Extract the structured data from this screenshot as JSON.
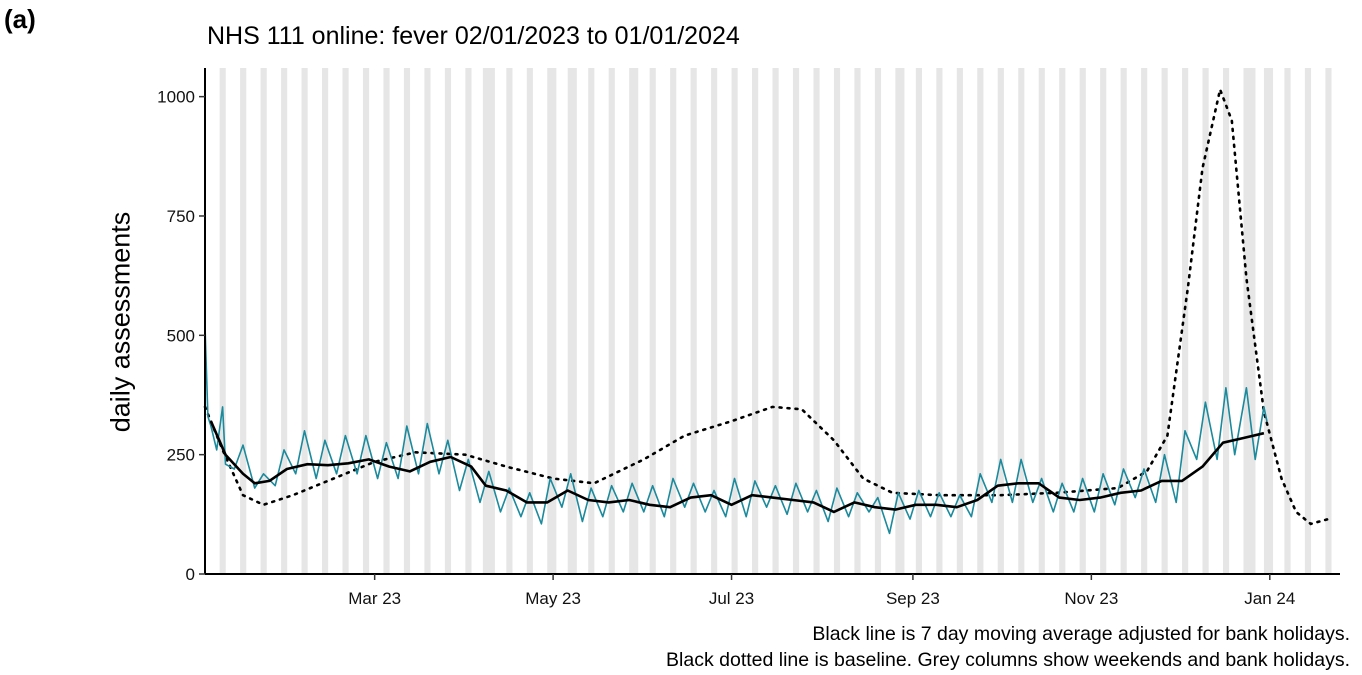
{
  "panel_label": "(a)",
  "caption": {
    "line1": "Black line is 7 day moving average adjusted for bank holidays.",
    "line2": "Black dotted line is baseline. Grey columns show weekends and bank holidays."
  },
  "colors": {
    "daily_series": "#1b8a9c",
    "moving_average": "#000000",
    "baseline": "#000000",
    "weekend_columns": "#e6e6e6"
  },
  "chart_data": {
    "type": "line",
    "title": "NHS 111 online: fever 02/01/2023 to 01/01/2024",
    "xlabel": "",
    "ylabel": "daily assessments",
    "x_range": [
      "2023-01-02",
      "2024-01-25"
    ],
    "ylim": [
      0,
      1060
    ],
    "y_ticks": [
      0,
      250,
      500,
      750,
      1000
    ],
    "x_ticks": [
      {
        "date": "2023-03-01",
        "label": "Mar 23"
      },
      {
        "date": "2023-05-01",
        "label": "May 23"
      },
      {
        "date": "2023-07-01",
        "label": "Jul 23"
      },
      {
        "date": "2023-09-01",
        "label": "Sep 23"
      },
      {
        "date": "2023-11-01",
        "label": "Nov 23"
      },
      {
        "date": "2024-01-01",
        "label": "Jan 24"
      }
    ],
    "grid": false,
    "weekend_columns": {
      "weekend_days": [
        "Sat",
        "Sun"
      ],
      "bank_holidays": [
        "2023-04-07",
        "2023-04-10",
        "2023-05-01",
        "2023-05-08",
        "2023-05-29",
        "2023-08-28",
        "2023-12-25",
        "2023-12-26",
        "2024-01-01"
      ]
    },
    "series": [
      {
        "role": "daily",
        "points": [
          [
            "2023-01-02",
            520
          ],
          [
            "2023-01-03",
            330
          ],
          [
            "2023-01-04",
            310
          ],
          [
            "2023-01-06",
            260
          ],
          [
            "2023-01-08",
            350
          ],
          [
            "2023-01-09",
            230
          ],
          [
            "2023-01-12",
            220
          ],
          [
            "2023-01-15",
            270
          ],
          [
            "2023-01-19",
            180
          ],
          [
            "2023-01-22",
            210
          ],
          [
            "2023-01-26",
            185
          ],
          [
            "2023-01-29",
            260
          ],
          [
            "2023-02-02",
            210
          ],
          [
            "2023-02-05",
            300
          ],
          [
            "2023-02-09",
            200
          ],
          [
            "2023-02-12",
            280
          ],
          [
            "2023-02-16",
            210
          ],
          [
            "2023-02-19",
            290
          ],
          [
            "2023-02-23",
            210
          ],
          [
            "2023-02-26",
            290
          ],
          [
            "2023-03-02",
            200
          ],
          [
            "2023-03-05",
            275
          ],
          [
            "2023-03-09",
            200
          ],
          [
            "2023-03-12",
            310
          ],
          [
            "2023-03-16",
            210
          ],
          [
            "2023-03-19",
            315
          ],
          [
            "2023-03-23",
            210
          ],
          [
            "2023-03-26",
            280
          ],
          [
            "2023-03-30",
            175
          ],
          [
            "2023-04-02",
            240
          ],
          [
            "2023-04-06",
            150
          ],
          [
            "2023-04-09",
            215
          ],
          [
            "2023-04-13",
            130
          ],
          [
            "2023-04-16",
            180
          ],
          [
            "2023-04-20",
            120
          ],
          [
            "2023-04-23",
            170
          ],
          [
            "2023-04-27",
            105
          ],
          [
            "2023-04-30",
            200
          ],
          [
            "2023-05-04",
            140
          ],
          [
            "2023-05-07",
            210
          ],
          [
            "2023-05-11",
            110
          ],
          [
            "2023-05-14",
            180
          ],
          [
            "2023-05-18",
            120
          ],
          [
            "2023-05-21",
            185
          ],
          [
            "2023-05-25",
            130
          ],
          [
            "2023-05-28",
            190
          ],
          [
            "2023-06-01",
            130
          ],
          [
            "2023-06-04",
            185
          ],
          [
            "2023-06-08",
            120
          ],
          [
            "2023-06-11",
            200
          ],
          [
            "2023-06-15",
            140
          ],
          [
            "2023-06-18",
            190
          ],
          [
            "2023-06-22",
            130
          ],
          [
            "2023-06-25",
            175
          ],
          [
            "2023-06-29",
            120
          ],
          [
            "2023-07-02",
            200
          ],
          [
            "2023-07-06",
            120
          ],
          [
            "2023-07-09",
            195
          ],
          [
            "2023-07-13",
            140
          ],
          [
            "2023-07-16",
            185
          ],
          [
            "2023-07-20",
            125
          ],
          [
            "2023-07-23",
            190
          ],
          [
            "2023-07-27",
            130
          ],
          [
            "2023-07-30",
            175
          ],
          [
            "2023-08-03",
            110
          ],
          [
            "2023-08-06",
            180
          ],
          [
            "2023-08-10",
            120
          ],
          [
            "2023-08-13",
            170
          ],
          [
            "2023-08-17",
            130
          ],
          [
            "2023-08-20",
            160
          ],
          [
            "2023-08-24",
            85
          ],
          [
            "2023-08-27",
            170
          ],
          [
            "2023-08-31",
            115
          ],
          [
            "2023-09-03",
            175
          ],
          [
            "2023-09-07",
            120
          ],
          [
            "2023-09-10",
            170
          ],
          [
            "2023-09-14",
            120
          ],
          [
            "2023-09-17",
            165
          ],
          [
            "2023-09-21",
            120
          ],
          [
            "2023-09-24",
            210
          ],
          [
            "2023-09-28",
            150
          ],
          [
            "2023-10-01",
            240
          ],
          [
            "2023-10-05",
            150
          ],
          [
            "2023-10-08",
            240
          ],
          [
            "2023-10-12",
            150
          ],
          [
            "2023-10-15",
            200
          ],
          [
            "2023-10-19",
            130
          ],
          [
            "2023-10-22",
            190
          ],
          [
            "2023-10-26",
            130
          ],
          [
            "2023-10-29",
            200
          ],
          [
            "2023-11-02",
            130
          ],
          [
            "2023-11-05",
            210
          ],
          [
            "2023-11-09",
            145
          ],
          [
            "2023-11-12",
            220
          ],
          [
            "2023-11-16",
            160
          ],
          [
            "2023-11-19",
            220
          ],
          [
            "2023-11-23",
            150
          ],
          [
            "2023-11-26",
            250
          ],
          [
            "2023-11-30",
            150
          ],
          [
            "2023-12-03",
            300
          ],
          [
            "2023-12-07",
            240
          ],
          [
            "2023-12-10",
            360
          ],
          [
            "2023-12-14",
            240
          ],
          [
            "2023-12-17",
            390
          ],
          [
            "2023-12-20",
            250
          ],
          [
            "2023-12-24",
            390
          ],
          [
            "2023-12-27",
            240
          ],
          [
            "2023-12-30",
            350
          ],
          [
            "2023-12-31",
            320
          ]
        ]
      },
      {
        "role": "moving_average",
        "points": [
          [
            "2023-01-04",
            320
          ],
          [
            "2023-01-09",
            250
          ],
          [
            "2023-01-15",
            210
          ],
          [
            "2023-01-19",
            190
          ],
          [
            "2023-01-24",
            195
          ],
          [
            "2023-01-30",
            220
          ],
          [
            "2023-02-06",
            230
          ],
          [
            "2023-02-13",
            228
          ],
          [
            "2023-02-20",
            232
          ],
          [
            "2023-02-27",
            240
          ],
          [
            "2023-03-06",
            225
          ],
          [
            "2023-03-13",
            215
          ],
          [
            "2023-03-20",
            235
          ],
          [
            "2023-03-27",
            245
          ],
          [
            "2023-04-03",
            225
          ],
          [
            "2023-04-08",
            185
          ],
          [
            "2023-04-15",
            175
          ],
          [
            "2023-04-22",
            150
          ],
          [
            "2023-04-29",
            150
          ],
          [
            "2023-05-06",
            175
          ],
          [
            "2023-05-13",
            155
          ],
          [
            "2023-05-20",
            150
          ],
          [
            "2023-05-27",
            155
          ],
          [
            "2023-06-03",
            145
          ],
          [
            "2023-06-10",
            140
          ],
          [
            "2023-06-17",
            160
          ],
          [
            "2023-06-24",
            165
          ],
          [
            "2023-07-01",
            145
          ],
          [
            "2023-07-08",
            165
          ],
          [
            "2023-07-15",
            160
          ],
          [
            "2023-07-22",
            155
          ],
          [
            "2023-07-29",
            150
          ],
          [
            "2023-08-05",
            130
          ],
          [
            "2023-08-12",
            150
          ],
          [
            "2023-08-19",
            140
          ],
          [
            "2023-08-26",
            135
          ],
          [
            "2023-09-02",
            145
          ],
          [
            "2023-09-09",
            145
          ],
          [
            "2023-09-16",
            140
          ],
          [
            "2023-09-23",
            155
          ],
          [
            "2023-09-30",
            185
          ],
          [
            "2023-10-07",
            190
          ],
          [
            "2023-10-14",
            190
          ],
          [
            "2023-10-21",
            160
          ],
          [
            "2023-10-28",
            155
          ],
          [
            "2023-11-04",
            160
          ],
          [
            "2023-11-11",
            170
          ],
          [
            "2023-11-18",
            175
          ],
          [
            "2023-11-25",
            195
          ],
          [
            "2023-12-02",
            195
          ],
          [
            "2023-12-09",
            225
          ],
          [
            "2023-12-16",
            275
          ],
          [
            "2023-12-23",
            285
          ],
          [
            "2023-12-30",
            295
          ]
        ]
      },
      {
        "role": "baseline",
        "points": [
          [
            "2023-01-02",
            350
          ],
          [
            "2023-01-08",
            260
          ],
          [
            "2023-01-15",
            165
          ],
          [
            "2023-01-22",
            145
          ],
          [
            "2023-02-01",
            165
          ],
          [
            "2023-02-15",
            200
          ],
          [
            "2023-03-01",
            235
          ],
          [
            "2023-03-15",
            255
          ],
          [
            "2023-04-01",
            250
          ],
          [
            "2023-04-15",
            225
          ],
          [
            "2023-05-01",
            200
          ],
          [
            "2023-05-15",
            190
          ],
          [
            "2023-06-01",
            240
          ],
          [
            "2023-06-15",
            290
          ],
          [
            "2023-07-01",
            320
          ],
          [
            "2023-07-15",
            350
          ],
          [
            "2023-07-25",
            345
          ],
          [
            "2023-08-05",
            280
          ],
          [
            "2023-08-15",
            200
          ],
          [
            "2023-08-25",
            170
          ],
          [
            "2023-09-10",
            165
          ],
          [
            "2023-10-01",
            165
          ],
          [
            "2023-10-20",
            170
          ],
          [
            "2023-11-10",
            180
          ],
          [
            "2023-11-20",
            215
          ],
          [
            "2023-11-27",
            290
          ],
          [
            "2023-12-04",
            600
          ],
          [
            "2023-12-09",
            850
          ],
          [
            "2023-12-15",
            1015
          ],
          [
            "2023-12-19",
            950
          ],
          [
            "2023-12-24",
            620
          ],
          [
            "2023-12-30",
            340
          ],
          [
            "2024-01-05",
            200
          ],
          [
            "2024-01-10",
            130
          ],
          [
            "2024-01-15",
            105
          ],
          [
            "2024-01-21",
            115
          ]
        ]
      }
    ]
  }
}
